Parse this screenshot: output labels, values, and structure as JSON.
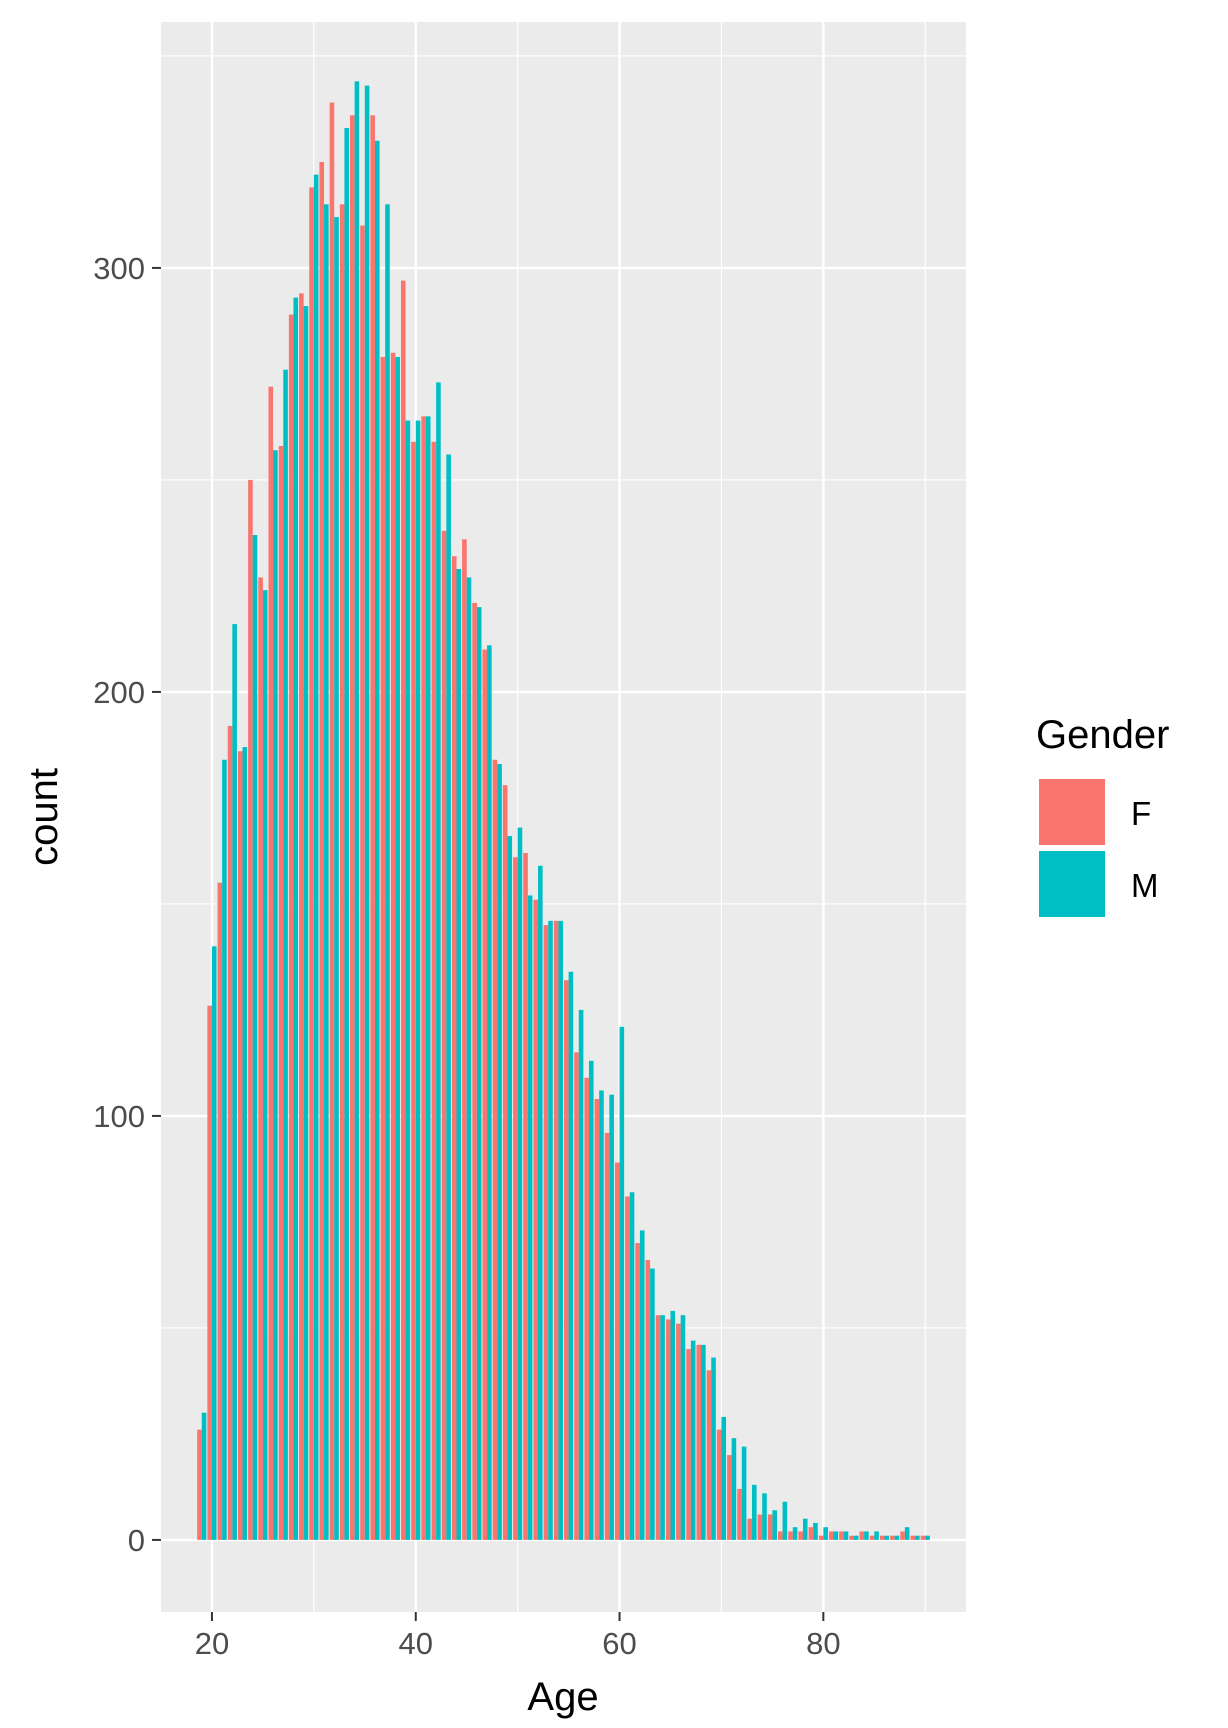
{
  "chart_data": {
    "type": "bar",
    "xlabel": "Age",
    "ylabel": "count",
    "xlim": [
      15,
      94
    ],
    "ylim": [
      -17,
      358
    ],
    "x_ticks": [
      20,
      40,
      60,
      80
    ],
    "x_minor": [
      30,
      50,
      70,
      90
    ],
    "y_ticks": [
      0,
      100,
      200,
      300
    ],
    "y_minor": [
      50,
      150,
      250,
      350
    ],
    "grid": true,
    "panel_background": "#ebebeb",
    "legend": {
      "title": "Gender",
      "position": "right"
    },
    "x": [
      19,
      20,
      21,
      22,
      23,
      24,
      25,
      26,
      27,
      28,
      29,
      30,
      31,
      32,
      33,
      34,
      35,
      36,
      37,
      38,
      39,
      40,
      41,
      42,
      43,
      44,
      45,
      46,
      47,
      48,
      49,
      50,
      51,
      52,
      53,
      54,
      55,
      56,
      57,
      58,
      59,
      60,
      61,
      62,
      63,
      64,
      65,
      66,
      67,
      68,
      69,
      70,
      71,
      72,
      73,
      74,
      75,
      76,
      77,
      78,
      79,
      80,
      81,
      82,
      83,
      84,
      85,
      86,
      87,
      88,
      89,
      90
    ],
    "series": [
      {
        "name": "F",
        "color": "#f8766d",
        "values": [
          26,
          126,
          155,
          192,
          186,
          250,
          227,
          272,
          258,
          289,
          294,
          319,
          325,
          339,
          315,
          336,
          310,
          336,
          279,
          280,
          297,
          259,
          265,
          259,
          238,
          232,
          236,
          221,
          210,
          184,
          178,
          161,
          162,
          151,
          145,
          146,
          132,
          115,
          109,
          104,
          96,
          89,
          81,
          70,
          66,
          53,
          52,
          51,
          45,
          46,
          40,
          26,
          20,
          12,
          5,
          6,
          6,
          2,
          2,
          2,
          3,
          1,
          2,
          2,
          1,
          2,
          1,
          1,
          1,
          2,
          1,
          1
        ]
      },
      {
        "name": "M",
        "color": "#00bfc4",
        "values": [
          30,
          140,
          184,
          216,
          187,
          237,
          224,
          257,
          276,
          293,
          291,
          322,
          315,
          312,
          333,
          344,
          343,
          330,
          315,
          279,
          264,
          264,
          265,
          273,
          256,
          229,
          227,
          220,
          211,
          183,
          166,
          168,
          152,
          159,
          146,
          146,
          134,
          125,
          113,
          106,
          105,
          121,
          82,
          73,
          64,
          53,
          54,
          53,
          47,
          46,
          43,
          29,
          24,
          22,
          13,
          11,
          7,
          9,
          3,
          5,
          4,
          3,
          2,
          2,
          1,
          2,
          2,
          1,
          1,
          3,
          1,
          1
        ]
      }
    ]
  }
}
